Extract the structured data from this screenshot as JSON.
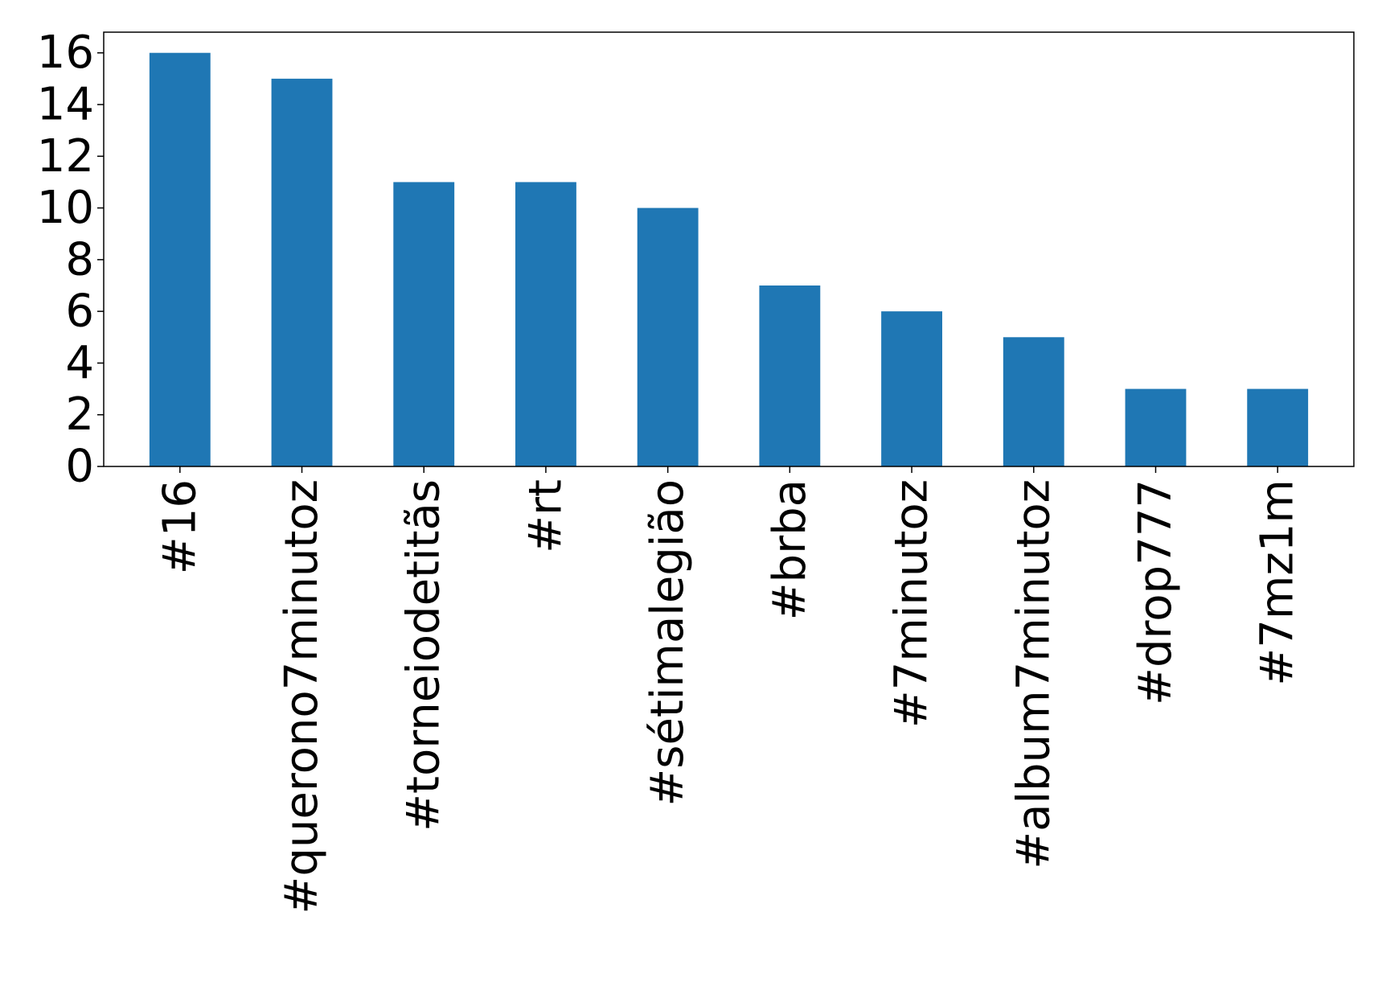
{
  "chart_data": {
    "type": "bar",
    "title": "",
    "xlabel": "",
    "ylabel": "",
    "categories": [
      "#16",
      "#querono7minutoz",
      "#torneiodetitãs",
      "#rt",
      "#sétimalegião",
      "#brba",
      "#7minutoz",
      "#album7minutoz",
      "#drop777",
      "#7mz1m"
    ],
    "values": [
      16,
      15,
      11,
      11,
      10,
      7,
      6,
      5,
      3,
      3
    ],
    "ylim": [
      0,
      16.8
    ],
    "yticks": [
      "0",
      "2",
      "4",
      "6",
      "8",
      "10",
      "12",
      "14",
      "16"
    ],
    "grid": false,
    "legend": "none",
    "bar_color": "#1f77b4"
  }
}
